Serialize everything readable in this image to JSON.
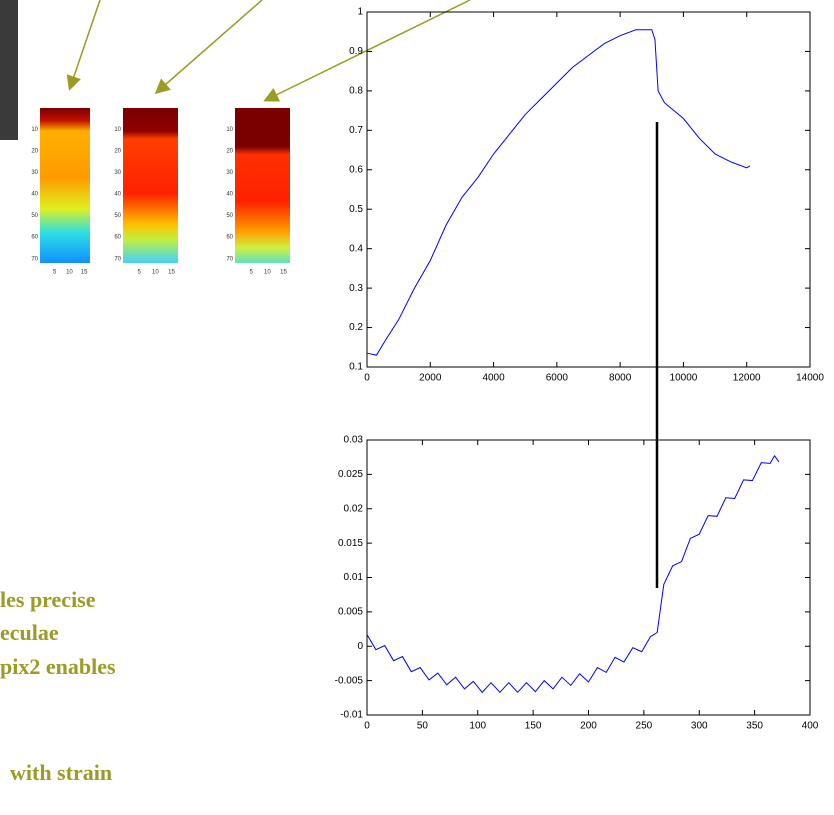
{
  "chart_data": [
    {
      "type": "line",
      "color": "#0000ff",
      "x": [
        0,
        300,
        600,
        1000,
        1500,
        2000,
        2500,
        3000,
        3500,
        4000,
        4500,
        5000,
        5500,
        6000,
        6500,
        7000,
        7500,
        8000,
        8500,
        9000,
        9100,
        9200,
        9400,
        9700,
        10000,
        10500,
        11000,
        11500,
        12000,
        12100
      ],
      "values": [
        0.135,
        0.13,
        0.17,
        0.22,
        0.3,
        0.37,
        0.46,
        0.53,
        0.58,
        0.64,
        0.69,
        0.74,
        0.78,
        0.82,
        0.86,
        0.89,
        0.92,
        0.94,
        0.955,
        0.955,
        0.93,
        0.8,
        0.77,
        0.75,
        0.73,
        0.68,
        0.64,
        0.62,
        0.605,
        0.61
      ],
      "xlim": [
        0,
        14000
      ],
      "xticks": [
        0,
        2000,
        4000,
        6000,
        8000,
        10000,
        12000,
        14000
      ],
      "ylim": [
        0.1,
        1
      ],
      "yticks": [
        0.1,
        0.2,
        0.3,
        0.4,
        0.5,
        0.6,
        0.7,
        0.8,
        0.9,
        1
      ]
    },
    {
      "type": "line",
      "color": "#0000ff",
      "x": [
        0,
        8,
        16,
        24,
        32,
        40,
        48,
        56,
        64,
        72,
        80,
        88,
        96,
        104,
        112,
        120,
        128,
        136,
        144,
        152,
        160,
        168,
        176,
        184,
        192,
        200,
        208,
        216,
        224,
        232,
        240,
        248,
        256,
        262,
        265,
        268,
        276,
        284,
        292,
        300,
        308,
        316,
        324,
        332,
        340,
        348,
        356,
        364,
        368,
        372
      ],
      "values": [
        0.0017,
        -0.0005,
        0.0001,
        -0.0021,
        -0.0015,
        -0.0037,
        -0.0031,
        -0.0049,
        -0.0039,
        -0.0056,
        -0.0045,
        -0.0062,
        -0.0051,
        -0.0067,
        -0.0053,
        -0.0067,
        -0.0053,
        -0.0067,
        -0.0053,
        -0.0066,
        -0.005,
        -0.0062,
        -0.0045,
        -0.0057,
        -0.004,
        -0.0052,
        -0.0031,
        -0.0038,
        -0.0016,
        -0.0023,
        -0.0002,
        -0.0008,
        0.0014,
        0.002,
        0.0055,
        0.009,
        0.0117,
        0.0123,
        0.0157,
        0.0163,
        0.019,
        0.0189,
        0.0216,
        0.0215,
        0.0242,
        0.0241,
        0.0267,
        0.0266,
        0.0277,
        0.0268
      ],
      "xlim": [
        0,
        400
      ],
      "xticks": [
        0,
        50,
        100,
        150,
        200,
        250,
        300,
        350,
        400
      ],
      "ylim": [
        -0.01,
        0.03
      ],
      "yticks": [
        -0.01,
        -0.005,
        0,
        0.005,
        0.01,
        0.015,
        0.02,
        0.025,
        0.03
      ]
    }
  ],
  "heatmaps": {
    "yticks": [
      10,
      20,
      30,
      40,
      50,
      60,
      70
    ],
    "xticks": [
      5,
      10,
      15
    ]
  },
  "text_lines": [
    "les precise",
    "eculae",
    "pix2 enables",
    "with strain"
  ]
}
